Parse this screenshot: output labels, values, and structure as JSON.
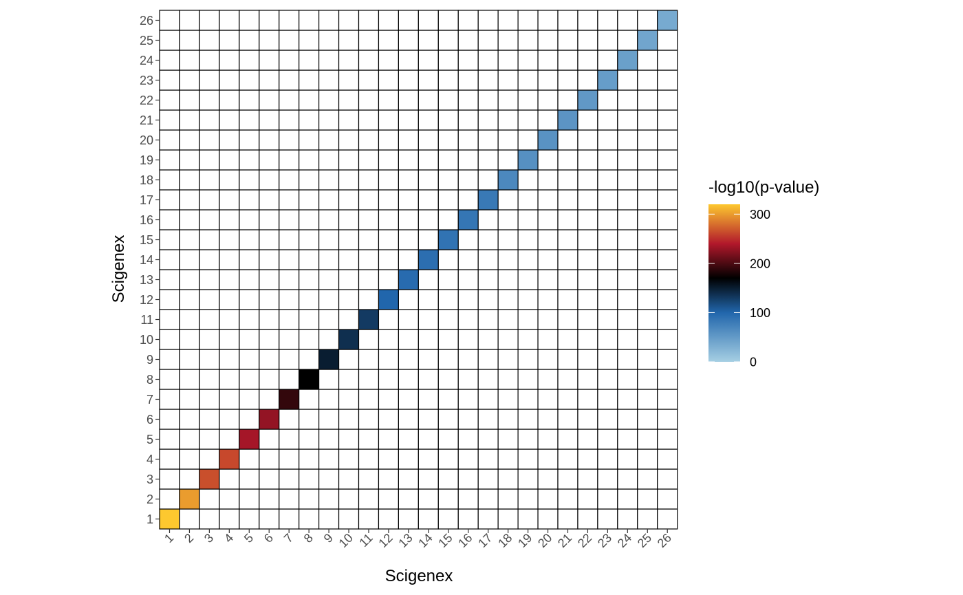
{
  "chart_data": {
    "type": "heatmap",
    "title": "",
    "xlabel": "Scigenex",
    "ylabel": "Scigenex",
    "x_categories": [
      "1",
      "2",
      "3",
      "4",
      "5",
      "6",
      "7",
      "8",
      "9",
      "10",
      "11",
      "12",
      "13",
      "14",
      "15",
      "16",
      "17",
      "18",
      "19",
      "20",
      "21",
      "22",
      "23",
      "24",
      "25",
      "26"
    ],
    "y_categories": [
      "1",
      "2",
      "3",
      "4",
      "5",
      "6",
      "7",
      "8",
      "9",
      "10",
      "11",
      "12",
      "13",
      "14",
      "15",
      "16",
      "17",
      "18",
      "19",
      "20",
      "21",
      "22",
      "23",
      "24",
      "25",
      "26"
    ],
    "cells": [
      {
        "x": "1",
        "y": "1",
        "value": 320
      },
      {
        "x": "2",
        "y": "2",
        "value": 300
      },
      {
        "x": "3",
        "y": "3",
        "value": 265
      },
      {
        "x": "4",
        "y": "4",
        "value": 262
      },
      {
        "x": "5",
        "y": "5",
        "value": 235
      },
      {
        "x": "6",
        "y": "6",
        "value": 228
      },
      {
        "x": "7",
        "y": "7",
        "value": 190
      },
      {
        "x": "8",
        "y": "8",
        "value": 170
      },
      {
        "x": "9",
        "y": "9",
        "value": 150
      },
      {
        "x": "10",
        "y": "10",
        "value": 138
      },
      {
        "x": "11",
        "y": "11",
        "value": 130
      },
      {
        "x": "12",
        "y": "12",
        "value": 100
      },
      {
        "x": "13",
        "y": "13",
        "value": 95
      },
      {
        "x": "14",
        "y": "14",
        "value": 92
      },
      {
        "x": "15",
        "y": "15",
        "value": 88
      },
      {
        "x": "16",
        "y": "16",
        "value": 85
      },
      {
        "x": "17",
        "y": "17",
        "value": 82
      },
      {
        "x": "18",
        "y": "18",
        "value": 68
      },
      {
        "x": "19",
        "y": "19",
        "value": 60
      },
      {
        "x": "20",
        "y": "20",
        "value": 58
      },
      {
        "x": "21",
        "y": "21",
        "value": 56
      },
      {
        "x": "22",
        "y": "22",
        "value": 52
      },
      {
        "x": "23",
        "y": "23",
        "value": 48
      },
      {
        "x": "24",
        "y": "24",
        "value": 45
      },
      {
        "x": "25",
        "y": "25",
        "value": 40
      },
      {
        "x": "26",
        "y": "26",
        "value": 35
      }
    ],
    "empty_cell_color": "#ffffff",
    "grid": true,
    "legend": {
      "title": "-log10(p-value)",
      "placement": "right",
      "range": [
        0,
        320
      ],
      "ticks": [
        0,
        100,
        200,
        300
      ],
      "color_stops": [
        {
          "value": 0,
          "color": "#a6cfe3"
        },
        {
          "value": 100,
          "color": "#2166ac"
        },
        {
          "value": 170,
          "color": "#000000"
        },
        {
          "value": 240,
          "color": "#b2182b"
        },
        {
          "value": 320,
          "color": "#fdc82f"
        }
      ]
    }
  }
}
